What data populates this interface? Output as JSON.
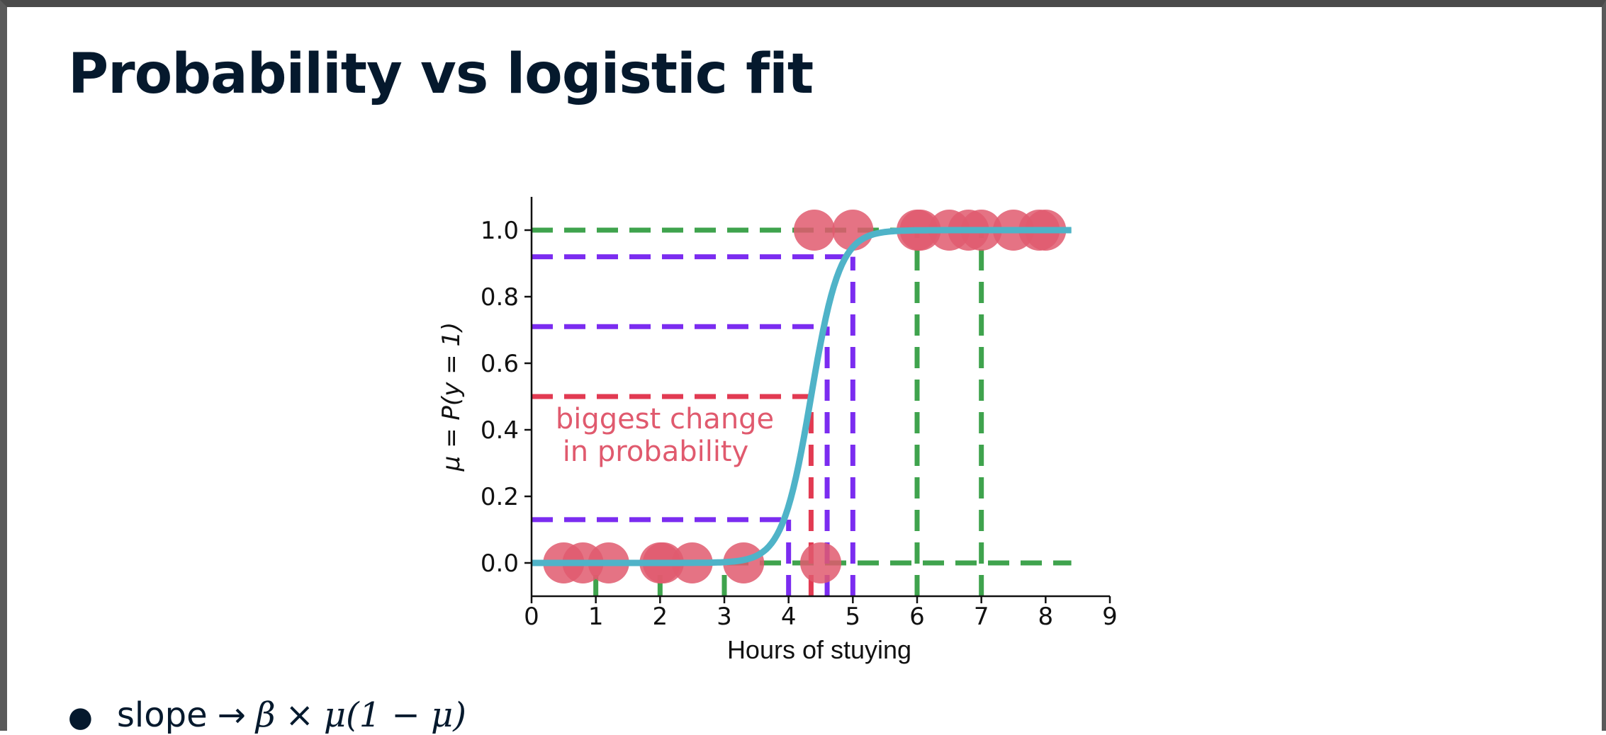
{
  "slide": {
    "title": "Probability vs logistic fit",
    "bullet": {
      "word": "slope",
      "arrow": "→",
      "beta": "β",
      "times": "×",
      "mu_expr": "μ(1 − μ)"
    }
  },
  "colors": {
    "points": "#e05a6e",
    "curve": "#4fb3c8",
    "green_lines": "#3fa34d",
    "purple_lines": "#7b2cf0",
    "red_lines": "#e23a52",
    "text": "#05192d"
  },
  "chart_data": {
    "type": "scatter",
    "xlabel": "Hours of stuying",
    "ylabel": "μ = P(y = 1)",
    "xlim": [
      0,
      9
    ],
    "ylim": [
      -0.1,
      1.1
    ],
    "xticks": [
      "0",
      "1",
      "2",
      "3",
      "4",
      "5",
      "6",
      "7",
      "8",
      "9"
    ],
    "yticks": [
      "0.0",
      "0.2",
      "0.4",
      "0.6",
      "0.8",
      "1.0"
    ],
    "grid": false,
    "annotation": {
      "line1": "biggest change",
      "line2": "in probability"
    },
    "points": [
      {
        "x": 0.5,
        "y": 0
      },
      {
        "x": 0.8,
        "y": 0
      },
      {
        "x": 1.2,
        "y": 0
      },
      {
        "x": 2.0,
        "y": 0
      },
      {
        "x": 2.05,
        "y": 0
      },
      {
        "x": 2.5,
        "y": 0
      },
      {
        "x": 3.3,
        "y": 0
      },
      {
        "x": 4.5,
        "y": 0
      },
      {
        "x": 4.4,
        "y": 1
      },
      {
        "x": 5.0,
        "y": 1
      },
      {
        "x": 6.0,
        "y": 1
      },
      {
        "x": 6.05,
        "y": 1
      },
      {
        "x": 6.5,
        "y": 1
      },
      {
        "x": 6.8,
        "y": 1
      },
      {
        "x": 7.0,
        "y": 1
      },
      {
        "x": 7.5,
        "y": 1
      },
      {
        "x": 7.9,
        "y": 1
      },
      {
        "x": 8.0,
        "y": 1
      }
    ],
    "logistic_curve": {
      "midpoint": 4.35,
      "steepness": 4.5,
      "x_range": [
        0,
        8.4
      ]
    },
    "green_verticals": [
      1,
      2,
      3,
      6,
      7
    ],
    "purple_levels": [
      {
        "x": 4.0,
        "y": 0.13
      },
      {
        "x": 4.6,
        "y": 0.71
      },
      {
        "x": 5.0,
        "y": 0.92
      }
    ],
    "red_level": {
      "x": 4.35,
      "y": 0.5
    }
  }
}
